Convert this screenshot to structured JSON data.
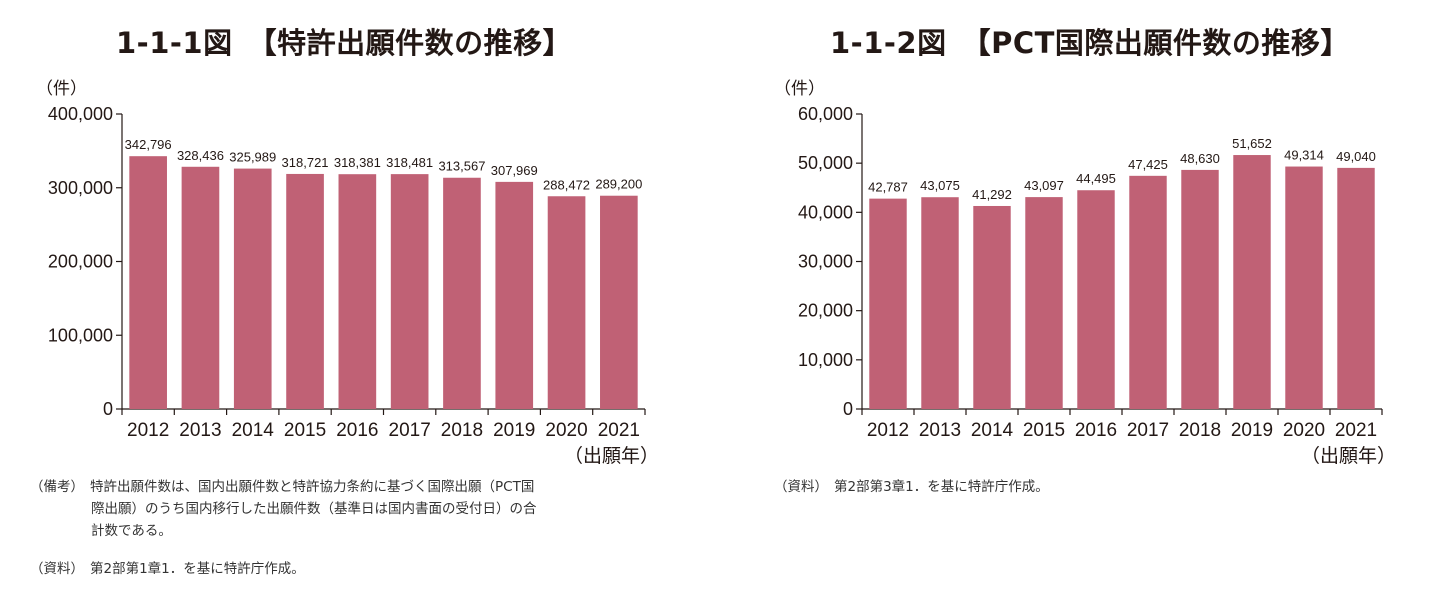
{
  "colors": {
    "bar": "#C06175",
    "axis": "#231815"
  },
  "charts": {
    "left": {
      "title": "1-1-1図　【特許出願件数の推移】",
      "notes": {
        "biko_head": "（備考）",
        "biko_line1": "特許出願件数は、国内出願件数と特許協力条約に基づく国際出願（PCT国",
        "biko_line2": "際出願）のうち国内移行した出願件数（基準日は国内書面の受付日）の合",
        "biko_line3": "計数である。",
        "shiryo_head": "（資料）",
        "shiryo_text": "第2部第1章1．を基に特許庁作成。"
      }
    },
    "right": {
      "title": "1-1-2図　【PCT国際出願件数の推移】",
      "notes": {
        "shiryo_head": "（資料）",
        "shiryo_text": "第2部第3章1．を基に特許庁作成。"
      }
    }
  },
  "chart_data": [
    {
      "type": "bar",
      "title": "1-1-1図　【特許出願件数の推移】",
      "ylabel": "（件）",
      "xlabel": "（出願年）",
      "categories": [
        "2012",
        "2013",
        "2014",
        "2015",
        "2016",
        "2017",
        "2018",
        "2019",
        "2020",
        "2021"
      ],
      "values": [
        342796,
        328436,
        325989,
        318721,
        318381,
        318481,
        313567,
        307969,
        288472,
        289200
      ],
      "value_labels": [
        "342,796",
        "328,436",
        "325,989",
        "318,721",
        "318,381",
        "318,481",
        "313,567",
        "307,969",
        "288,472",
        "289,200"
      ],
      "yticks": [
        0,
        100000,
        200000,
        300000,
        400000
      ],
      "ytick_labels": [
        "0",
        "100,000",
        "200,000",
        "300,000",
        "400,000"
      ],
      "ylim": [
        0,
        400000
      ]
    },
    {
      "type": "bar",
      "title": "1-1-2図　【PCT国際出願件数の推移】",
      "ylabel": "（件）",
      "xlabel": "（出願年）",
      "categories": [
        "2012",
        "2013",
        "2014",
        "2015",
        "2016",
        "2017",
        "2018",
        "2019",
        "2020",
        "2021"
      ],
      "values": [
        42787,
        43075,
        41292,
        43097,
        44495,
        47425,
        48630,
        51652,
        49314,
        49040
      ],
      "value_labels": [
        "42,787",
        "43,075",
        "41,292",
        "43,097",
        "44,495",
        "47,425",
        "48,630",
        "51,652",
        "49,314",
        "49,040"
      ],
      "yticks": [
        0,
        10000,
        20000,
        30000,
        40000,
        50000,
        60000
      ],
      "ytick_labels": [
        "0",
        "10,000",
        "20,000",
        "30,000",
        "40,000",
        "50,000",
        "60,000"
      ],
      "ylim": [
        0,
        60000
      ]
    }
  ]
}
